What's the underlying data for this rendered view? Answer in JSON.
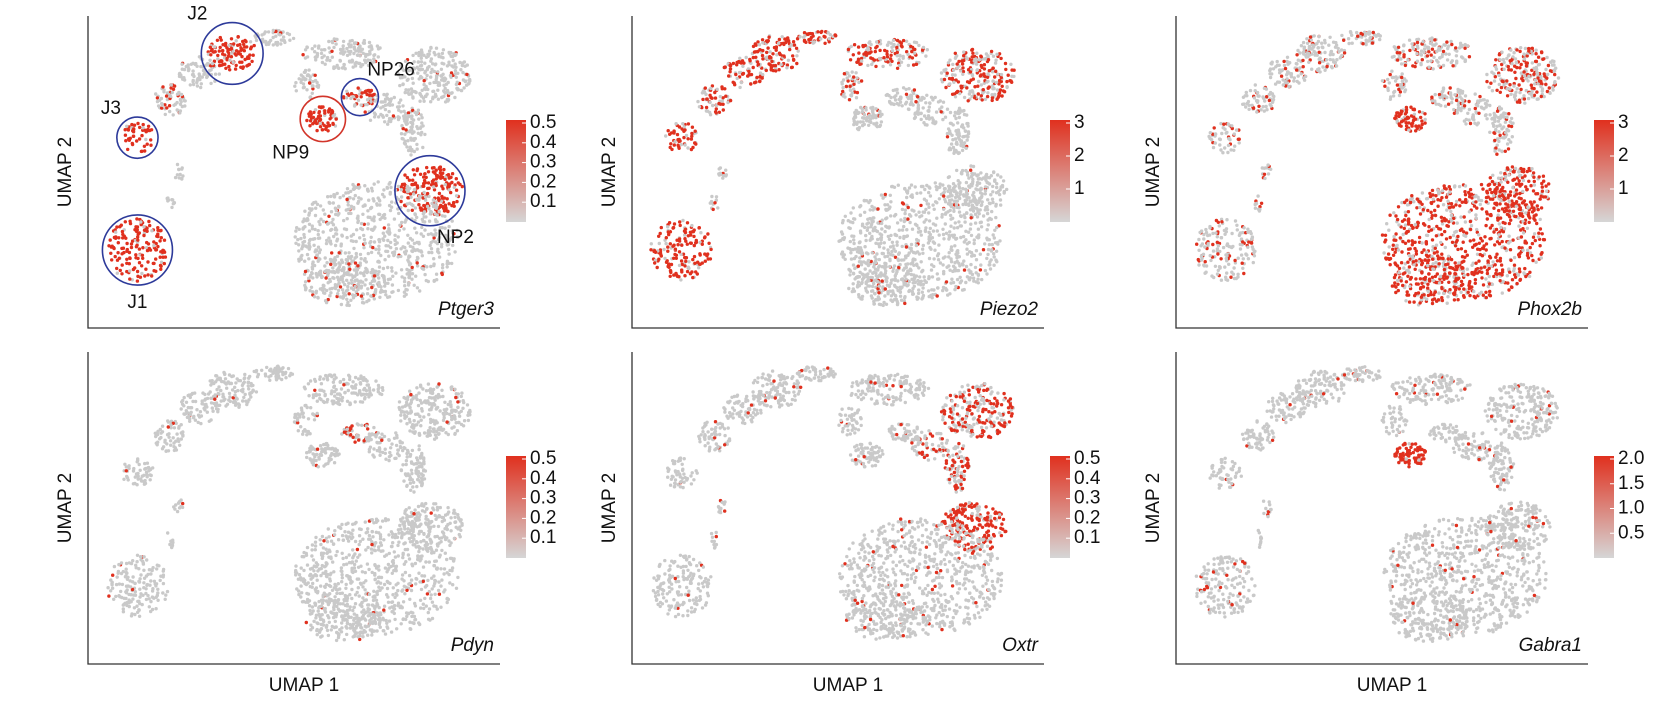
{
  "axis_labels": {
    "x": "UMAP 1",
    "y": "UMAP 2"
  },
  "panels": [
    {
      "gene": "Ptger3",
      "colorbar_ticks": [
        0.1,
        0.2,
        0.3,
        0.4,
        0.5
      ],
      "clusters": [
        "J1",
        "J2",
        "J3",
        "NP9",
        "NP26",
        "NP2"
      ]
    },
    {
      "gene": "Piezo2",
      "colorbar_ticks": [
        1,
        2,
        3
      ]
    },
    {
      "gene": "Phox2b",
      "colorbar_ticks": [
        1,
        2,
        3
      ]
    },
    {
      "gene": "Pdyn",
      "colorbar_ticks": [
        0.1,
        0.2,
        0.3,
        0.4,
        0.5
      ]
    },
    {
      "gene": "Oxtr",
      "colorbar_ticks": [
        0.1,
        0.2,
        0.3,
        0.4,
        0.5
      ]
    },
    {
      "gene": "Gabra1",
      "colorbar_ticks": [
        0.5,
        {
          "value": 1,
          "label": "1.0"
        },
        1.5,
        {
          "value": 2,
          "label": "2.0"
        }
      ]
    }
  ]
}
